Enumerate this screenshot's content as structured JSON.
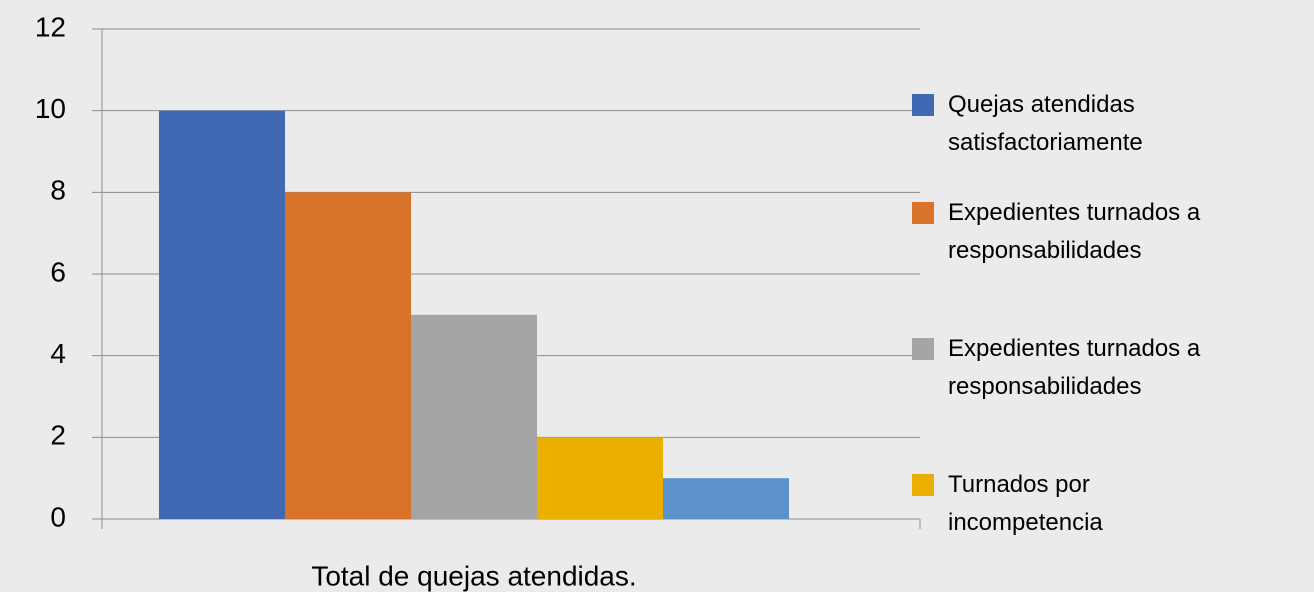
{
  "chart_data": {
    "type": "bar",
    "categories": [
      "Total de quejas atendidas."
    ],
    "series": [
      {
        "name": "Quejas atendidas satisfactoriamente",
        "color": "#4169b3",
        "values": [
          10
        ]
      },
      {
        "name": "Expedientes turnados a responsabilidades",
        "color": "#d9732c",
        "values": [
          8
        ]
      },
      {
        "name": "Expedientes turnados a responsabilidades",
        "color": "#a5a5a5",
        "values": [
          5
        ]
      },
      {
        "name": "Turnados por incompetencia",
        "color": "#ebaf00",
        "values": [
          2
        ]
      },
      {
        "color": "#5b92cb",
        "values": [
          1
        ]
      }
    ],
    "ylim": [
      0,
      12
    ],
    "yticks": [
      0,
      2,
      4,
      6,
      8,
      10,
      12
    ],
    "grid": true,
    "legend": "right"
  }
}
